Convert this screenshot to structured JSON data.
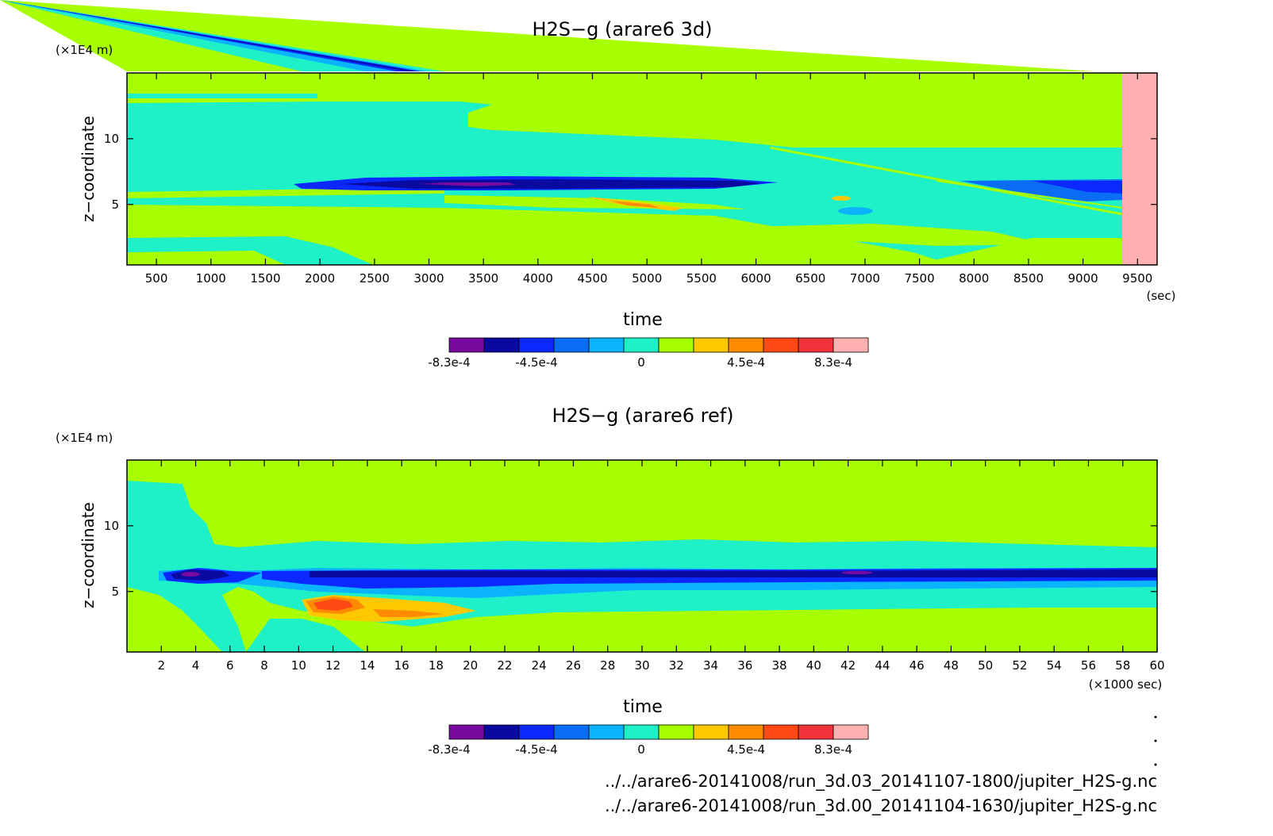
{
  "colors": {
    "background_field": "#a8ff00",
    "cyan": "#1ef0c8",
    "light_blue": "#0ab4ff",
    "mid_blue": "#0a6ef5",
    "blue": "#0a28ff",
    "navy": "#0a0aa0",
    "purple": "#780aa0",
    "orange_yellow": "#ffc800",
    "orange": "#ff8c00",
    "red_orange": "#ff4a14",
    "red": "#f0323c",
    "pink": "#ffb0b0"
  },
  "chart_data": [
    {
      "type": "heatmap",
      "title": "H2S−g (arare6 3d)",
      "xlabel": "time",
      "ylabel": "z−coordinate",
      "y_unit": "(×1E4 m)",
      "x_unit": "(sec)",
      "xlim": [
        230,
        9680
      ],
      "ylim": [
        0.4,
        15
      ],
      "x_ticks": [
        "500",
        "1000",
        "1500",
        "2000",
        "2500",
        "3000",
        "3500",
        "4000",
        "4500",
        "5000",
        "5500",
        "6000",
        "6500",
        "7000",
        "7500",
        "8000",
        "8500",
        "9000",
        "9500"
      ],
      "y_ticks": [
        "5",
        "10"
      ],
      "x_tick_values": [
        500,
        1000,
        1500,
        2000,
        2500,
        3000,
        3500,
        4000,
        4500,
        5000,
        5500,
        6000,
        6500,
        7000,
        7500,
        8000,
        8500,
        9000,
        9500
      ],
      "y_tick_values": [
        5,
        10
      ],
      "data_end_x": 9330,
      "features": [
        {
          "name": "dominant background",
          "level": "0 to 1.5e-4"
        },
        {
          "name": "negative band",
          "x_range": [
            1800,
            6300
          ],
          "y_center": 6.1,
          "min_level": "-8.3e-4"
        },
        {
          "name": "positive streak",
          "x_range": [
            4500,
            5200
          ],
          "y_center": 5.0,
          "level": "3e-4"
        },
        {
          "name": "masked region",
          "x_range": [
            9330,
            9680
          ]
        }
      ]
    },
    {
      "type": "heatmap",
      "title": "H2S−g (arare6 ref)",
      "xlabel": "time",
      "ylabel": "z−coordinate",
      "y_unit": "(×1E4 m)",
      "x_unit": "(×1000 sec)",
      "xlim": [
        0,
        60
      ],
      "ylim": [
        0.4,
        15
      ],
      "x_ticks": [
        "2",
        "4",
        "6",
        "8",
        "10",
        "12",
        "14",
        "16",
        "18",
        "20",
        "22",
        "24",
        "26",
        "28",
        "30",
        "32",
        "34",
        "36",
        "38",
        "40",
        "42",
        "44",
        "46",
        "48",
        "50",
        "52",
        "54",
        "56",
        "58",
        "60"
      ],
      "y_ticks": [
        "5",
        "10"
      ],
      "x_tick_values": [
        2,
        4,
        6,
        8,
        10,
        12,
        14,
        16,
        18,
        20,
        22,
        24,
        26,
        28,
        30,
        32,
        34,
        36,
        38,
        40,
        42,
        44,
        46,
        48,
        50,
        52,
        54,
        56,
        58,
        60
      ],
      "y_tick_values": [
        5,
        10
      ],
      "features": [
        {
          "name": "negative band",
          "x_range": [
            2,
            60
          ],
          "y_center": 6.2,
          "min_level": "-8.3e-4"
        },
        {
          "name": "positive blob",
          "x_range": [
            10,
            20
          ],
          "y_center": 3.6,
          "max_level": "6e-4"
        }
      ]
    }
  ],
  "colorbar": {
    "levels": [
      "-8.3e-4",
      "-4.5e-4",
      "0",
      "4.5e-4",
      "8.3e-4"
    ],
    "colors": [
      "#780aa0",
      "#0a0aa0",
      "#0a28ff",
      "#0a6ef5",
      "#0ab4ff",
      "#1ef0c8",
      "#a8ff00",
      "#ffc800",
      "#ff8c00",
      "#ff4a14",
      "#f0323c",
      "#ffb0b0"
    ]
  },
  "footer": {
    "files": [
      "../../arare6-20141008/run_3d.03_20141107-1800/jupiter_H2S-g.nc",
      "../../arare6-20141008/run_3d.00_20141104-1630/jupiter_H2S-g.nc"
    ]
  }
}
